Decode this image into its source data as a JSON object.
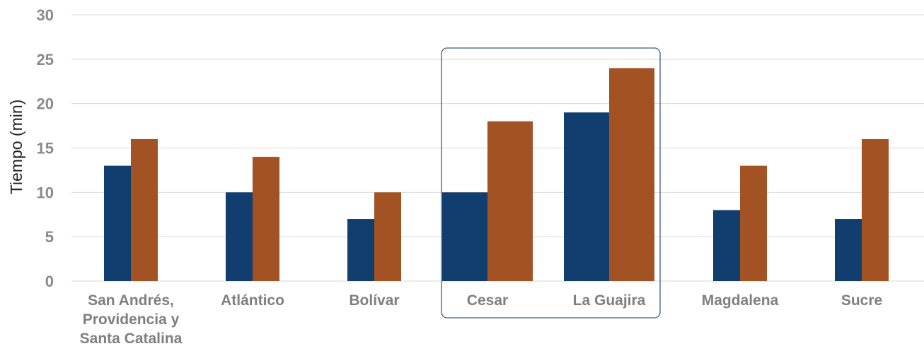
{
  "chart_data": {
    "type": "bar",
    "title": "",
    "xlabel": "",
    "ylabel": "Tiempo (min)",
    "ylim": [
      0,
      30
    ],
    "yticks": [
      "0",
      "5",
      "10",
      "15",
      "20",
      "25",
      "30"
    ],
    "grid": true,
    "legend": "none",
    "categories": [
      [
        "San Andrés,",
        "Providencia y",
        "Santa Catalina"
      ],
      [
        "Atlántico"
      ],
      [
        "Bolívar"
      ],
      [
        "Cesar"
      ],
      [
        "La Guajira"
      ],
      [
        "Magdalena"
      ],
      [
        "Sucre"
      ]
    ],
    "series": [
      {
        "values": [
          13,
          10,
          7,
          10,
          19,
          8,
          7
        ],
        "color": "#123d6f"
      },
      {
        "values": [
          16,
          14,
          10,
          18,
          24,
          13,
          16
        ],
        "color": "#a35224"
      }
    ],
    "highlight": {
      "categories": [
        "Cesar",
        "La Guajira"
      ],
      "color": "#3c5a8a"
    },
    "gridline_color": "#d9d9d9"
  }
}
